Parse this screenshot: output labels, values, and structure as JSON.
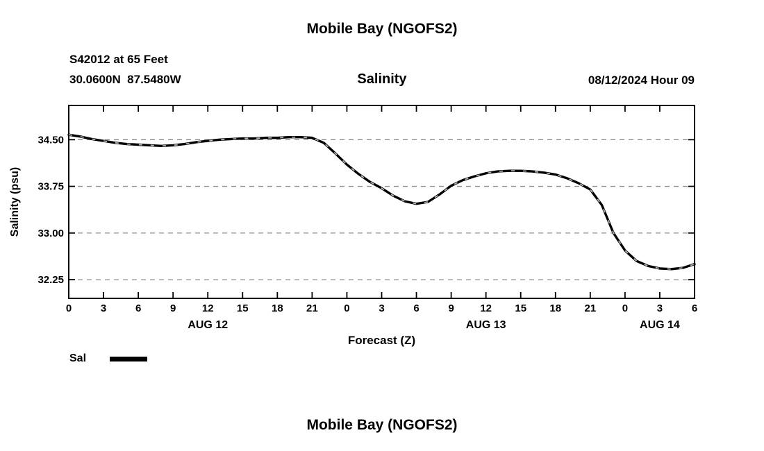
{
  "page": {
    "top_title": "Mobile Bay (NGOFS2)",
    "bottom_title": "Mobile Bay (NGOFS2)"
  },
  "header": {
    "station": "S42012 at 65 Feet",
    "coordinates": "30.0600N  87.5480W",
    "plot_title": "Salinity",
    "model_run": "08/12/2024 Hour 09"
  },
  "legend": {
    "label": "Sal"
  },
  "chart_data": {
    "type": "line",
    "title": "Salinity",
    "xlabel": "Forecast (Z)",
    "ylabel": "Salinity (psu)",
    "xlim": [
      0,
      54
    ],
    "ylim": [
      31.95,
      35.05
    ],
    "yticks": [
      34.5,
      33.75,
      33.0,
      32.25
    ],
    "ytick_labels": [
      "34.50",
      "33.75",
      "33.00",
      "32.25"
    ],
    "xtick_hours": [
      0,
      3,
      6,
      9,
      12,
      15,
      18,
      21,
      24,
      27,
      30,
      33,
      36,
      39,
      42,
      45,
      48,
      51,
      54
    ],
    "xtick_labels": [
      "0",
      "3",
      "6",
      "9",
      "12",
      "15",
      "18",
      "21",
      "0",
      "3",
      "6",
      "9",
      "12",
      "15",
      "18",
      "21",
      "0",
      "3",
      "6"
    ],
    "date_labels": [
      {
        "label": "AUG 12",
        "hour": 12
      },
      {
        "label": "AUG 13",
        "hour": 36
      },
      {
        "label": "AUG 14",
        "hour": 51
      }
    ],
    "grid": "horizontal-dashed",
    "legend_position": "below-left",
    "series": [
      {
        "name": "Sal",
        "color": "#000000",
        "x": [
          0,
          1,
          2,
          3,
          4,
          5,
          6,
          7,
          8,
          9,
          10,
          11,
          12,
          13,
          14,
          15,
          16,
          17,
          18,
          19,
          20,
          21,
          22,
          23,
          24,
          25,
          26,
          27,
          28,
          29,
          30,
          31,
          32,
          33,
          34,
          35,
          36,
          37,
          38,
          39,
          40,
          41,
          42,
          43,
          44,
          45,
          46,
          47,
          48,
          49,
          50,
          51,
          52,
          53,
          54
        ],
        "values": [
          34.58,
          34.55,
          34.51,
          34.48,
          34.45,
          34.43,
          34.42,
          34.41,
          34.4,
          34.41,
          34.43,
          34.46,
          34.48,
          34.5,
          34.51,
          34.52,
          34.52,
          34.53,
          34.53,
          34.54,
          34.54,
          34.53,
          34.45,
          34.28,
          34.1,
          33.95,
          33.82,
          33.72,
          33.6,
          33.51,
          33.47,
          33.5,
          33.62,
          33.76,
          33.85,
          33.91,
          33.96,
          33.99,
          34.0,
          34.0,
          33.99,
          33.97,
          33.94,
          33.88,
          33.8,
          33.7,
          33.45,
          33.0,
          32.72,
          32.55,
          32.47,
          32.43,
          32.42,
          32.44,
          32.5
        ]
      }
    ]
  }
}
